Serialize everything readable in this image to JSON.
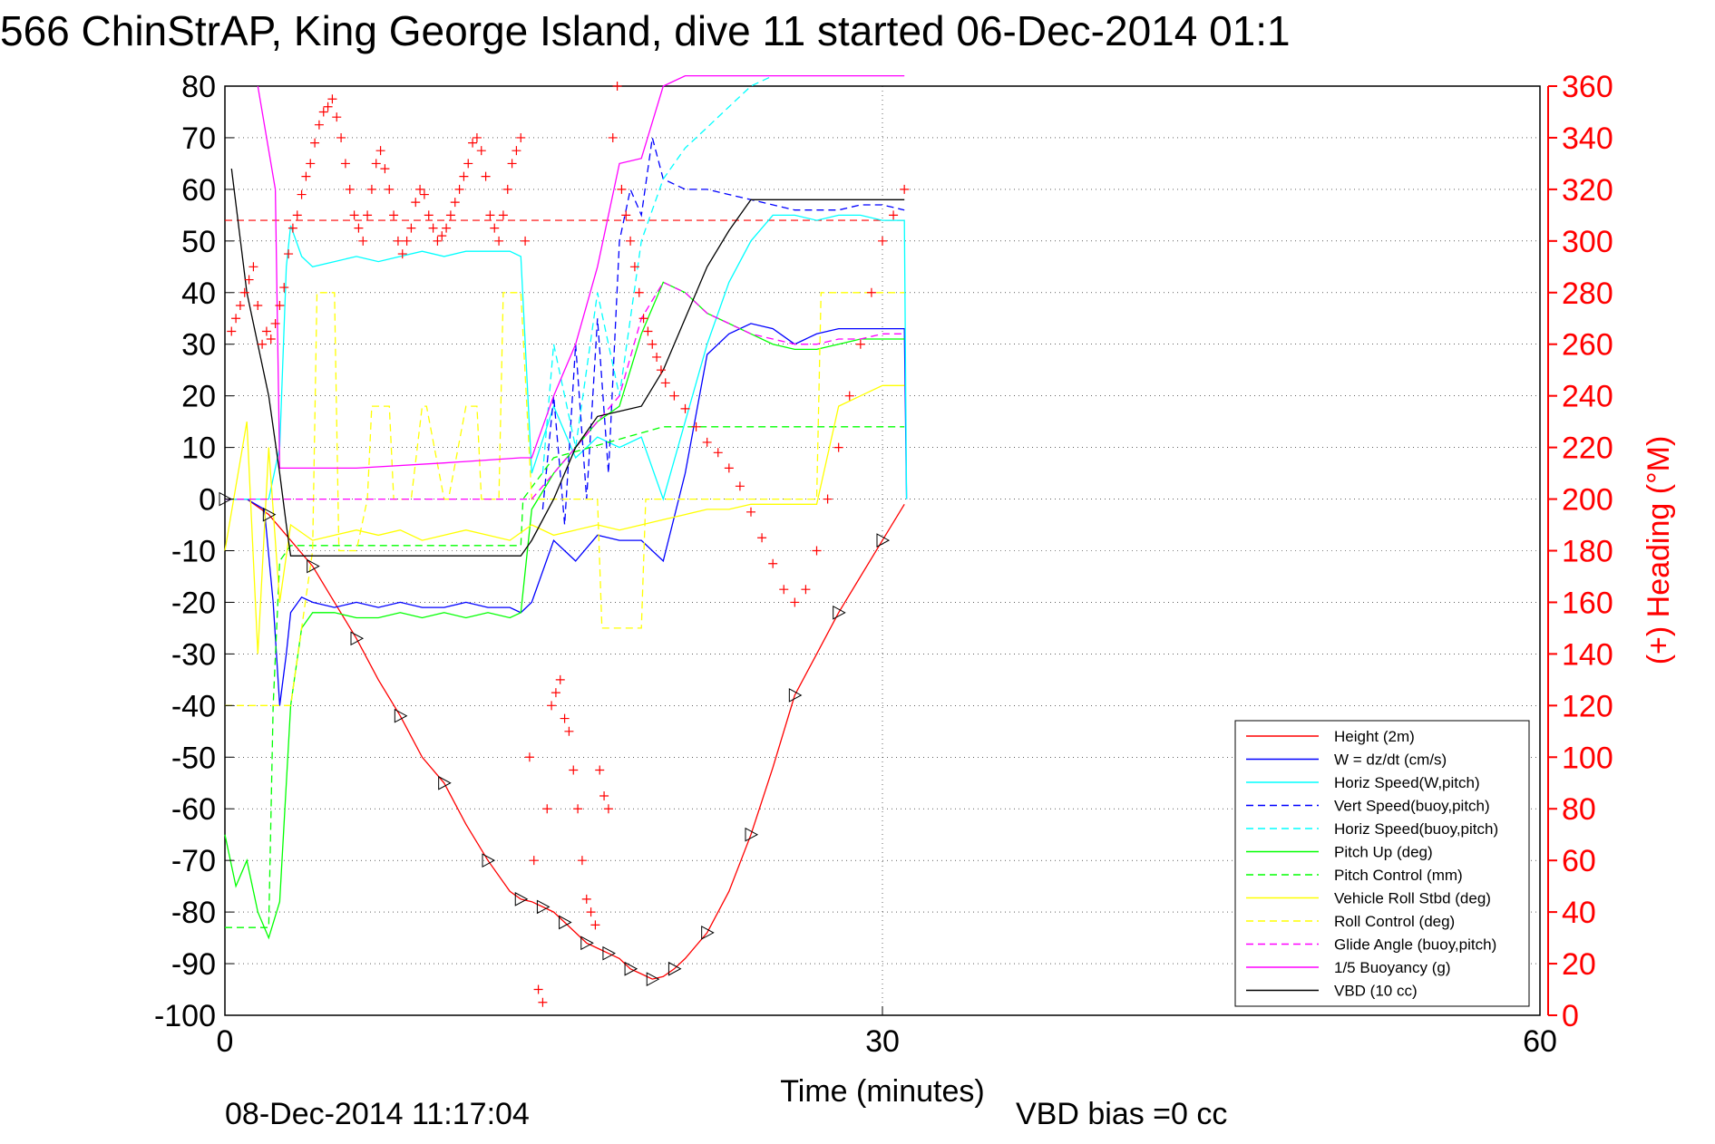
{
  "chart_data": {
    "type": "line",
    "title": "566 ChinStrAP, King George Island, dive 11 started 06-Dec-2014 01:1",
    "xlabel": "Time (minutes)",
    "ylabel_right": "(+) Heading (°M)",
    "xlim": [
      0,
      60
    ],
    "ylim_left": [
      -100,
      80
    ],
    "ylim_right": [
      0,
      360
    ],
    "xticks": [
      "0",
      "30",
      "60"
    ],
    "yticks_left": [
      "80",
      "70",
      "60",
      "50",
      "40",
      "30",
      "20",
      "10",
      "0",
      "-10",
      "-20",
      "-30",
      "-40",
      "-50",
      "-60",
      "-70",
      "-80",
      "-90",
      "-100"
    ],
    "yticks_right": [
      "360",
      "340",
      "320",
      "300",
      "280",
      "260",
      "240",
      "220",
      "200",
      "180",
      "160",
      "140",
      "120",
      "100",
      "80",
      "60",
      "40",
      "20",
      "0"
    ],
    "grid": true,
    "legend_position": "bottom-right",
    "footer_date": "08-Dec-2014 11:17:04",
    "footer_bias": "VBD bias =0 cc",
    "colors": {
      "red": "#ff0000",
      "blue": "#0000ff",
      "cyan": "#00ffff",
      "green": "#00ff00",
      "yellow": "#ffff00",
      "magenta": "#ff00ff",
      "black": "#000000"
    },
    "legend": [
      {
        "label": "Height (2m)",
        "color": "#ff0000",
        "dash": false
      },
      {
        "label": "W = dz/dt (cm/s)",
        "color": "#0000ff",
        "dash": false
      },
      {
        "label": "Horiz Speed(W,pitch)",
        "color": "#00ffff",
        "dash": false
      },
      {
        "label": "Vert Speed(buoy,pitch)",
        "color": "#0000ff",
        "dash": true
      },
      {
        "label": "Horiz Speed(buoy,pitch)",
        "color": "#00ffff",
        "dash": true
      },
      {
        "label": "Pitch Up (deg)",
        "color": "#00ff00",
        "dash": false
      },
      {
        "label": "Pitch Control (mm)",
        "color": "#00ff00",
        "dash": true
      },
      {
        "label": "Vehicle Roll Stbd (deg)",
        "color": "#ffff00",
        "dash": false
      },
      {
        "label": "Roll Control (deg)",
        "color": "#ffff00",
        "dash": true
      },
      {
        "label": "Glide Angle (buoy,pitch)",
        "color": "#ff00ff",
        "dash": true
      },
      {
        "label": "1/5 Buoyancy (g)",
        "color": "#ff00ff",
        "dash": false
      },
      {
        "label": "VBD (10 cc)",
        "color": "#000000",
        "dash": false
      }
    ],
    "series": [
      {
        "name": "Height (2m)",
        "color": "#ff0000",
        "dash": false,
        "x": [
          0,
          1,
          2,
          3,
          4,
          5,
          6,
          7,
          8,
          9,
          10,
          11,
          12,
          13,
          13.5,
          14,
          14.5,
          15,
          15.5,
          16,
          16.5,
          17,
          17.5,
          18,
          18.5,
          19,
          19.5,
          20,
          20.5,
          21,
          22,
          23,
          24,
          25,
          26,
          27,
          28,
          29,
          30,
          31
        ],
        "y": [
          0,
          0,
          -3,
          -8,
          -13,
          -20,
          -27,
          -35,
          -42,
          -50,
          -55,
          -63,
          -70,
          -76,
          -77.5,
          -78,
          -79,
          -80,
          -82,
          -84,
          -86,
          -87,
          -88,
          -89,
          -91,
          -92,
          -93,
          -92.5,
          -91,
          -89,
          -84,
          -76,
          -65,
          -52,
          -38,
          -30,
          -22,
          -15,
          -8,
          -1
        ]
      },
      {
        "name": "W = dz/dt (cm/s)",
        "color": "#0000ff",
        "dash": false,
        "x": [
          0,
          1,
          1.8,
          2.2,
          2.5,
          2.8,
          3.0,
          3.5,
          4,
          5,
          6,
          7,
          8,
          9,
          10,
          11,
          12,
          13,
          13.5,
          14,
          15,
          16,
          17,
          18,
          19,
          20,
          21,
          22,
          23,
          24,
          25,
          26,
          27,
          28,
          29,
          30,
          31,
          31.1
        ],
        "y": [
          0,
          0,
          -2,
          -20,
          -40,
          -30,
          -22,
          -19,
          -20,
          -21,
          -20,
          -21,
          -20,
          -21,
          -21,
          -20,
          -21,
          -21,
          -22,
          -20,
          -8,
          -12,
          -7,
          -8,
          -8,
          -12,
          5,
          28,
          32,
          34,
          33,
          30,
          32,
          33,
          33,
          33,
          33,
          0
        ]
      },
      {
        "name": "Horiz Speed(W,pitch)",
        "color": "#00ffff",
        "dash": false,
        "x": [
          0,
          1,
          2,
          2.5,
          2.8,
          3,
          3.5,
          4,
          5,
          6,
          7,
          8,
          9,
          10,
          11,
          12,
          13,
          13.5,
          14,
          15,
          16,
          17,
          18,
          19,
          20,
          21,
          22,
          23,
          24,
          25,
          26,
          27,
          28,
          29,
          30,
          31,
          31.1
        ],
        "y": [
          0,
          0,
          0,
          10,
          45,
          53,
          47,
          45,
          46,
          47,
          46,
          47,
          48,
          47,
          48,
          48,
          48,
          47,
          5,
          18,
          8,
          12,
          10,
          12,
          0,
          15,
          30,
          42,
          50,
          55,
          55,
          54,
          55,
          55,
          54,
          54,
          0
        ]
      },
      {
        "name": "Vert Speed(buoy,pitch)",
        "color": "#0000ff",
        "dash": true,
        "x": [
          14.5,
          15,
          15.5,
          16,
          16.5,
          17,
          17.5,
          18,
          18.5,
          19,
          19.5,
          20,
          21,
          22,
          23,
          24,
          25,
          26,
          27,
          28,
          29,
          30,
          31
        ],
        "y": [
          -2,
          20,
          -5,
          30,
          0,
          35,
          5,
          50,
          60,
          55,
          70,
          62,
          60,
          60,
          59,
          58,
          57,
          56,
          56,
          56,
          57,
          57,
          56
        ]
      },
      {
        "name": "Horiz Speed(buoy,pitch)",
        "color": "#00ffff",
        "dash": true,
        "x": [
          14.5,
          15,
          16,
          17,
          18,
          19,
          20,
          21,
          22,
          23,
          24,
          25
        ],
        "y": [
          5,
          30,
          10,
          40,
          20,
          50,
          62,
          68,
          72,
          76,
          80,
          82
        ]
      },
      {
        "name": "Pitch Up (deg)",
        "color": "#00ff00",
        "dash": false,
        "x": [
          0,
          0.5,
          1,
          1.5,
          2,
          2.5,
          3,
          3.5,
          4,
          5,
          6,
          7,
          8,
          9,
          10,
          11,
          12,
          13,
          13.5,
          14,
          15,
          16,
          17,
          18,
          19,
          20,
          21,
          22,
          23,
          24,
          25,
          26,
          27,
          28,
          29,
          30,
          31
        ],
        "y": [
          -65,
          -75,
          -70,
          -80,
          -85,
          -78,
          -40,
          -25,
          -22,
          -22,
          -23,
          -23,
          -22,
          -23,
          -22,
          -23,
          -22,
          -23,
          -22,
          -2,
          5,
          10,
          15,
          18,
          32,
          42,
          40,
          36,
          34,
          32,
          30,
          29,
          29,
          30,
          31,
          31,
          31
        ]
      },
      {
        "name": "Pitch Control (mm)",
        "color": "#00ff00",
        "dash": true,
        "x": [
          0,
          2,
          2.2,
          2.5,
          3,
          13.5,
          13.6,
          15,
          20,
          31
        ],
        "y": [
          -83,
          -83,
          -40,
          -12,
          -9,
          -9,
          0,
          8,
          14,
          14
        ]
      },
      {
        "name": "Vehicle Roll Stbd (deg)",
        "color": "#ffff00",
        "dash": false,
        "x": [
          0,
          1,
          1.5,
          2,
          2.5,
          3,
          4,
          5,
          6,
          7,
          8,
          9,
          10,
          11,
          12,
          13,
          14,
          15,
          16,
          17,
          18,
          19,
          20,
          21,
          22,
          23,
          24,
          25,
          26,
          27,
          28,
          29,
          30,
          31
        ],
        "y": [
          -10,
          15,
          -30,
          10,
          -20,
          -5,
          -8,
          -7,
          -6,
          -7,
          -6,
          -8,
          -7,
          -6,
          -7,
          -8,
          -5,
          -7,
          -6,
          -5,
          -6,
          -5,
          -4,
          -3,
          -2,
          -2,
          -1,
          -1,
          -1,
          -1,
          18,
          20,
          22,
          22
        ]
      },
      {
        "name": "Roll Control (deg)",
        "color": "#ffff00",
        "dash": true,
        "x": [
          0,
          2,
          3,
          4,
          4.2,
          5,
          5.2,
          6,
          6.5,
          6.7,
          7.5,
          7.7,
          8.5,
          9,
          9.2,
          10,
          10.2,
          11,
          11.5,
          11.7,
          12.5,
          12.7,
          13.5,
          14,
          17,
          17.2,
          19,
          19.2,
          27,
          27.2,
          31
        ],
        "y": [
          -40,
          -40,
          -40,
          -10,
          40,
          40,
          -10,
          -10,
          0,
          18,
          18,
          0,
          0,
          18,
          18,
          0,
          0,
          18,
          18,
          0,
          0,
          40,
          40,
          0,
          0,
          -25,
          -25,
          0,
          0,
          40,
          40
        ]
      },
      {
        "name": "Glide Angle (buoy,pitch)",
        "color": "#ff00ff",
        "dash": true,
        "x": [
          0,
          14,
          15,
          16,
          17,
          18,
          19,
          20,
          21,
          22,
          23,
          24,
          25,
          26,
          27,
          28,
          29,
          30,
          31
        ],
        "y": [
          0,
          0,
          5,
          10,
          15,
          20,
          35,
          42,
          40,
          36,
          34,
          32,
          31,
          30,
          30,
          31,
          31,
          32,
          32
        ]
      },
      {
        "name": "1/5 Buoyancy (g)",
        "color": "#ff00ff",
        "dash": false,
        "x": [
          1.5,
          2.3,
          2.5,
          3,
          6,
          10,
          13.5,
          14,
          15,
          16,
          17,
          18,
          19,
          20,
          21,
          22,
          23,
          24,
          25,
          26,
          27,
          28,
          29,
          30,
          31
        ],
        "y": [
          80,
          60,
          6,
          6,
          6,
          7,
          8,
          8,
          20,
          30,
          45,
          65,
          66,
          80,
          82,
          82,
          82,
          82,
          82,
          82,
          82,
          82,
          82,
          82,
          82
        ]
      },
      {
        "name": "VBD (10 cc)",
        "color": "#000000",
        "dash": false,
        "x": [
          0.3,
          1,
          2,
          2.5,
          2.8,
          3,
          4,
          8,
          13.5,
          14,
          15,
          16,
          17,
          18,
          19,
          20,
          21,
          22,
          23,
          24,
          25,
          26,
          27,
          28,
          29,
          30,
          31
        ],
        "y": [
          64,
          40,
          20,
          5,
          -5,
          -11,
          -11,
          -11,
          -11,
          -8,
          0,
          10,
          16,
          17,
          18,
          25,
          35,
          45,
          52,
          58,
          58,
          58,
          58,
          58,
          58,
          58,
          58
        ]
      }
    ],
    "reference_lines": [
      {
        "axis": "right",
        "value": 308,
        "color": "#ff0000",
        "dash": true
      }
    ],
    "heading_points": {
      "color": "#ff0000",
      "x": [
        0.3,
        0.5,
        0.7,
        0.9,
        1.1,
        1.3,
        1.5,
        1.7,
        1.9,
        2.1,
        2.3,
        2.5,
        2.7,
        2.9,
        3.1,
        3.3,
        3.5,
        3.7,
        3.9,
        4.1,
        4.3,
        4.5,
        4.7,
        4.9,
        5.1,
        5.3,
        5.5,
        5.7,
        5.9,
        6.1,
        6.3,
        6.5,
        6.7,
        6.9,
        7.1,
        7.3,
        7.5,
        7.7,
        7.9,
        8.1,
        8.3,
        8.5,
        8.7,
        8.9,
        9.1,
        9.3,
        9.5,
        9.7,
        9.9,
        10.1,
        10.3,
        10.5,
        10.7,
        10.9,
        11.1,
        11.3,
        11.5,
        11.7,
        11.9,
        12.1,
        12.3,
        12.5,
        12.7,
        12.9,
        13.1,
        13.3,
        13.5,
        13.7,
        13.9,
        14.1,
        14.3,
        14.5,
        14.7,
        14.9,
        15.1,
        15.3,
        15.5,
        15.7,
        15.9,
        16.1,
        16.3,
        16.5,
        16.7,
        16.9,
        17.1,
        17.3,
        17.5,
        17.7,
        17.9,
        18.1,
        18.3,
        18.5,
        18.7,
        18.9,
        19.1,
        19.3,
        19.5,
        19.7,
        19.9,
        20.1,
        20.5,
        21,
        21.5,
        22,
        22.5,
        23,
        23.5,
        24,
        24.5,
        25,
        25.5,
        26,
        26.5,
        27,
        27.5,
        28,
        28.5,
        29,
        29.5,
        30,
        30.5,
        31
      ],
      "y": [
        265,
        270,
        275,
        280,
        285,
        290,
        275,
        260,
        265,
        262,
        268,
        275,
        282,
        295,
        305,
        310,
        318,
        325,
        330,
        338,
        345,
        350,
        352,
        355,
        348,
        340,
        330,
        320,
        310,
        305,
        300,
        310,
        320,
        330,
        335,
        328,
        320,
        310,
        300,
        295,
        300,
        305,
        315,
        320,
        318,
        310,
        305,
        300,
        302,
        305,
        310,
        315,
        320,
        325,
        330,
        338,
        340,
        335,
        325,
        310,
        305,
        300,
        310,
        320,
        330,
        335,
        340,
        300,
        100,
        60,
        10,
        5,
        80,
        120,
        125,
        130,
        115,
        110,
        95,
        80,
        60,
        45,
        40,
        35,
        95,
        85,
        80,
        340,
        360,
        320,
        310,
        300,
        290,
        280,
        270,
        265,
        260,
        255,
        250,
        245,
        240,
        235,
        228,
        222,
        218,
        212,
        205,
        195,
        185,
        175,
        165,
        160,
        165,
        180,
        200,
        220,
        240,
        260,
        280,
        300,
        310,
        320
      ]
    }
  }
}
